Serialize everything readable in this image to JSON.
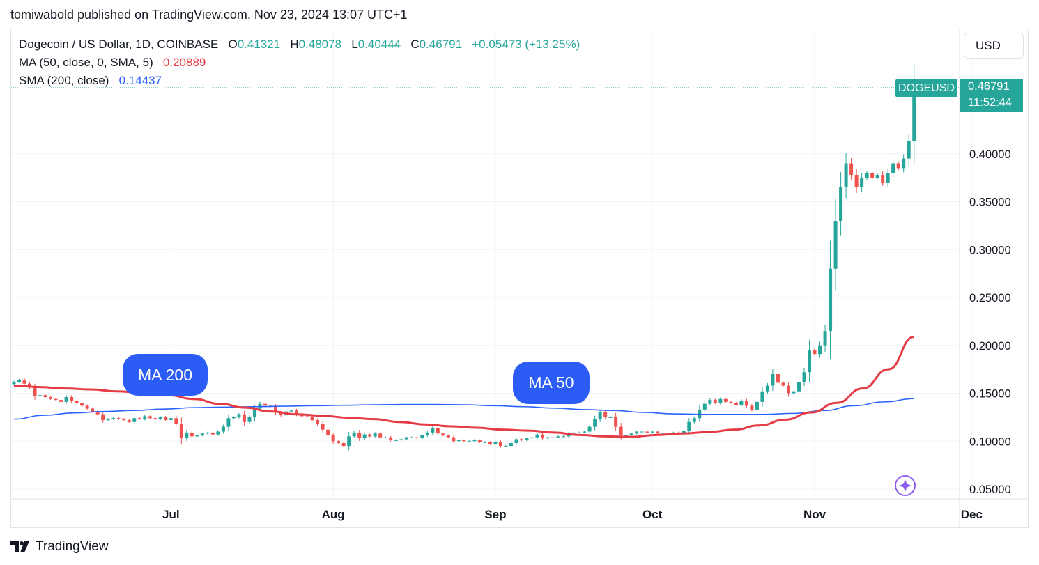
{
  "header": {
    "published": "tomiwabold published on TradingView.com, Nov 23, 2024 13:07 UTC+1"
  },
  "currency_button": "USD",
  "legend": {
    "symbol": "Dogecoin / US Dollar, 1D, COINBASE",
    "o_label": "O",
    "o_value": "0.41321",
    "h_label": "H",
    "h_value": "0.48078",
    "l_label": "L",
    "l_value": "0.40444",
    "c_label": "C",
    "c_value": "0.46791",
    "change": "+0.05473 (+13.25%)",
    "ma50_label": "MA (50, close, 0, SMA, 5)",
    "ma50_value": "0.20889",
    "sma200_label": "SMA (200, close)",
    "sma200_value": "0.14437"
  },
  "annotations": {
    "ma200": "MA 200",
    "ma50": "MA 50"
  },
  "price_tag": {
    "symbol": "DOGEUSD",
    "price": "0.46791",
    "countdown": "11:52:44"
  },
  "footer": {
    "brand": "TradingView"
  },
  "colors": {
    "up": "#26a69a",
    "down": "#ef5350",
    "ma50": "#e53b45",
    "sma200": "#2962ff",
    "annotation": "#2c5cf6"
  },
  "chart_data": {
    "type": "candlestick",
    "title": "Dogecoin / US Dollar, 1D, COINBASE",
    "y_ticks": [
      "0.40000",
      "0.35000",
      "0.30000",
      "0.25000",
      "0.20000",
      "0.15000",
      "0.10000",
      "0.05000"
    ],
    "y_tick_values": [
      0.4,
      0.35,
      0.3,
      0.25,
      0.2,
      0.15,
      0.1,
      0.05
    ],
    "x_ticks": [
      "Jul",
      "Aug",
      "Sep",
      "Oct",
      "Nov",
      "Dec"
    ],
    "x_tick_day_index": [
      30,
      61,
      92,
      122,
      153,
      183
    ],
    "first_date": "2024-06-01",
    "last_price": 0.46791,
    "close": [
      0.162,
      0.164,
      0.16,
      0.156,
      0.147,
      0.148,
      0.146,
      0.144,
      0.143,
      0.141,
      0.146,
      0.142,
      0.14,
      0.137,
      0.134,
      0.131,
      0.128,
      0.122,
      0.123,
      0.124,
      0.123,
      0.122,
      0.12,
      0.124,
      0.123,
      0.126,
      0.124,
      0.123,
      0.125,
      0.122,
      0.124,
      0.118,
      0.103,
      0.109,
      0.105,
      0.106,
      0.108,
      0.109,
      0.107,
      0.11,
      0.115,
      0.124,
      0.125,
      0.128,
      0.12,
      0.125,
      0.134,
      0.139,
      0.137,
      0.136,
      0.13,
      0.127,
      0.131,
      0.132,
      0.128,
      0.126,
      0.125,
      0.122,
      0.118,
      0.112,
      0.106,
      0.1,
      0.098,
      0.095,
      0.105,
      0.109,
      0.103,
      0.107,
      0.105,
      0.108,
      0.104,
      0.104,
      0.101,
      0.101,
      0.102,
      0.104,
      0.104,
      0.103,
      0.106,
      0.109,
      0.114,
      0.108,
      0.106,
      0.104,
      0.1,
      0.101,
      0.1,
      0.1,
      0.101,
      0.099,
      0.099,
      0.097,
      0.099,
      0.095,
      0.095,
      0.098,
      0.102,
      0.101,
      0.103,
      0.104,
      0.107,
      0.103,
      0.104,
      0.104,
      0.105,
      0.105,
      0.108,
      0.109,
      0.109,
      0.11,
      0.115,
      0.123,
      0.13,
      0.125,
      0.125,
      0.115,
      0.106,
      0.106,
      0.108,
      0.11,
      0.11,
      0.109,
      0.11,
      0.108,
      0.108,
      0.108,
      0.109,
      0.108,
      0.111,
      0.12,
      0.124,
      0.133,
      0.139,
      0.143,
      0.14,
      0.144,
      0.141,
      0.14,
      0.138,
      0.142,
      0.137,
      0.133,
      0.141,
      0.152,
      0.158,
      0.17,
      0.161,
      0.158,
      0.15,
      0.152,
      0.162,
      0.172,
      0.195,
      0.191,
      0.2,
      0.215,
      0.28,
      0.33,
      0.365,
      0.39,
      0.378,
      0.365,
      0.375,
      0.38,
      0.375,
      0.378,
      0.37,
      0.38,
      0.39,
      0.385,
      0.395,
      0.413,
      0.4679
    ],
    "series": [
      {
        "name": "MA (50, close, 0, SMA, 5)",
        "color": "#e53b45",
        "start_index": 0,
        "values": [
          0.158,
          0.1565,
          0.155,
          0.154,
          0.152,
          0.1505,
          0.148,
          0.144,
          0.139,
          0.135,
          0.131,
          0.128,
          0.1265,
          0.1245,
          0.123,
          0.12,
          0.1175,
          0.1155,
          0.114,
          0.112,
          0.111,
          0.109,
          0.1065,
          0.105,
          0.1045,
          0.1065,
          0.108,
          0.1095,
          0.112,
          0.1165,
          0.1225,
          0.13,
          0.14,
          0.155,
          0.175,
          0.2089
        ]
      },
      {
        "name": "SMA (200, close)",
        "color": "#2962ff",
        "start_index": 0,
        "values": [
          0.123,
          0.127,
          0.1295,
          0.131,
          0.132,
          0.1335,
          0.135,
          0.1355,
          0.136,
          0.1365,
          0.137,
          0.1375,
          0.138,
          0.1383,
          0.1383,
          0.138,
          0.137,
          0.136,
          0.1345,
          0.133,
          0.132,
          0.13,
          0.1285,
          0.128,
          0.128,
          0.128,
          0.129,
          0.132,
          0.137,
          0.141,
          0.1444
        ]
      }
    ],
    "ma_step_days": 5
  }
}
